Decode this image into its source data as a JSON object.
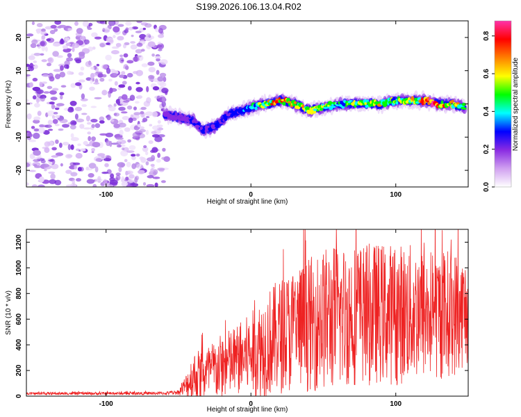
{
  "title": "S199.2026.106.13.04.R02",
  "chart_data": [
    {
      "type": "heatmap",
      "xlabel": "Height of straight line (km)",
      "ylabel": "Frequency (Hz)",
      "xlim": [
        -155,
        150
      ],
      "ylim": [
        -25,
        25
      ],
      "xticks": [
        -100,
        0,
        100
      ],
      "yticks": [
        -20,
        -10,
        0,
        10,
        20
      ],
      "colorbar": {
        "label": "Normalized spectral amplitude",
        "range": [
          0,
          0.88
        ],
        "ticks": [
          "0.0",
          "0.2",
          "0.4",
          "0.6",
          "0.8"
        ],
        "colors": [
          "#ffffff",
          "#d0a0f0",
          "#8a2be2",
          "#0000ff",
          "#00ffff",
          "#00ff00",
          "#ffff00",
          "#ff8000",
          "#ff0000",
          "#ff33aa"
        ]
      },
      "noise_region": {
        "x_from": -155,
        "x_to": -58
      },
      "ridge": {
        "x": [
          -60,
          -50,
          -40,
          -33,
          -25,
          -15,
          -5,
          0,
          10,
          20,
          30,
          40,
          50,
          60,
          70,
          80,
          90,
          100,
          110,
          120,
          130,
          140,
          148
        ],
        "freq": [
          -3,
          -4,
          -5,
          -8,
          -7,
          -3,
          -2,
          -1,
          0,
          1,
          0,
          -2,
          -1,
          0,
          0,
          0,
          0,
          1,
          1,
          1,
          0,
          0,
          -1
        ],
        "amplitude": [
          0.2,
          0.2,
          0.25,
          0.3,
          0.25,
          0.3,
          0.35,
          0.45,
          0.6,
          0.8,
          0.7,
          0.6,
          0.55,
          0.5,
          0.55,
          0.6,
          0.6,
          0.55,
          0.6,
          0.75,
          0.85,
          0.65,
          0.6
        ]
      }
    },
    {
      "type": "line",
      "xlabel": "Height of straight line (km)",
      "ylabel": "SNR (10 * v/v)",
      "xlim": [
        -155,
        150
      ],
      "ylim": [
        0,
        1300
      ],
      "xticks": [
        -100,
        0,
        100
      ],
      "yticks": [
        0,
        200,
        400,
        600,
        800,
        1000,
        1200
      ],
      "color": "#ee2222",
      "envelope": {
        "x": [
          -155,
          -60,
          -50,
          -45,
          -40,
          -30,
          -20,
          -10,
          0,
          10,
          20,
          30,
          40,
          50,
          60,
          70,
          80,
          90,
          100,
          110,
          120,
          130,
          140,
          150
        ],
        "mean": [
          20,
          22,
          30,
          80,
          150,
          180,
          230,
          280,
          330,
          400,
          470,
          520,
          560,
          600,
          620,
          640,
          640,
          650,
          640,
          650,
          640,
          640,
          650,
          660
        ],
        "spread": [
          10,
          12,
          20,
          90,
          200,
          220,
          260,
          280,
          320,
          420,
          450,
          500,
          520,
          560,
          580,
          560,
          560,
          550,
          560,
          540,
          520,
          520,
          500,
          420
        ]
      }
    }
  ]
}
